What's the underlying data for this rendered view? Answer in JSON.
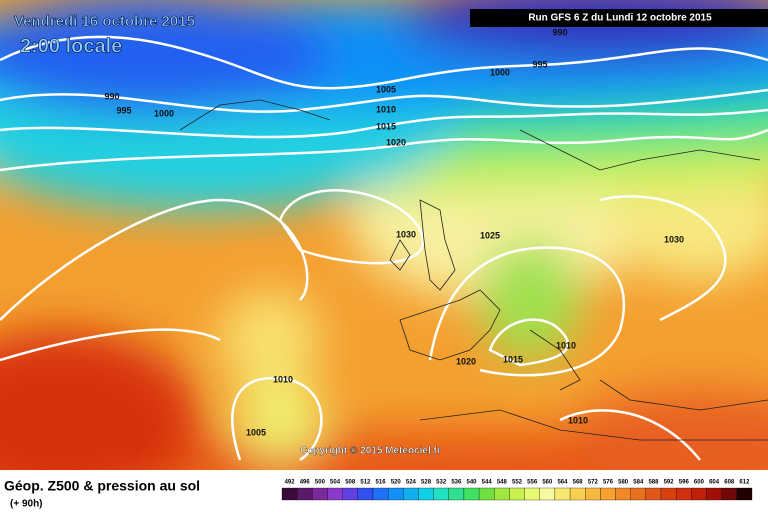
{
  "header": {
    "title": "Vendredi 16 octobre 2015",
    "time": "2:00 locale",
    "run": "Run GFS 6 Z du Lundi 12 octobre 2015"
  },
  "isobar_labels": [
    "990",
    "995",
    "1000",
    "990",
    "995",
    "1000",
    "1005",
    "1010",
    "1015",
    "1020",
    "1030",
    "1025",
    "1030",
    "1020",
    "1015",
    "1010",
    "1010",
    "1005",
    "1010"
  ],
  "copyright": "Copyright © 2015 Meteociel.fr",
  "footer": {
    "title": "Géop. Z500 & pression au sol",
    "lead": "(+ 90h)"
  },
  "scale": {
    "values": [
      492,
      496,
      500,
      504,
      508,
      512,
      516,
      520,
      524,
      528,
      532,
      536,
      540,
      544,
      548,
      552,
      556,
      560,
      564,
      568,
      572,
      576,
      580,
      584,
      588,
      592,
      596,
      600,
      604,
      608,
      612
    ],
    "colors": [
      "#3a0a3a",
      "#5a1a6a",
      "#7a2a9a",
      "#8a3ac8",
      "#6040e0",
      "#3050f0",
      "#2070f8",
      "#1090f8",
      "#10b0f0",
      "#10d0e8",
      "#20e0c0",
      "#30e090",
      "#40e060",
      "#70e040",
      "#a0e840",
      "#c8f050",
      "#e8f870",
      "#f8f8a0",
      "#f8e870",
      "#f8d050",
      "#f8b840",
      "#f8a030",
      "#f08828",
      "#e87020",
      "#e05818",
      "#d84010",
      "#d03010",
      "#c02008",
      "#a01008",
      "#700808",
      "#200000"
    ]
  }
}
